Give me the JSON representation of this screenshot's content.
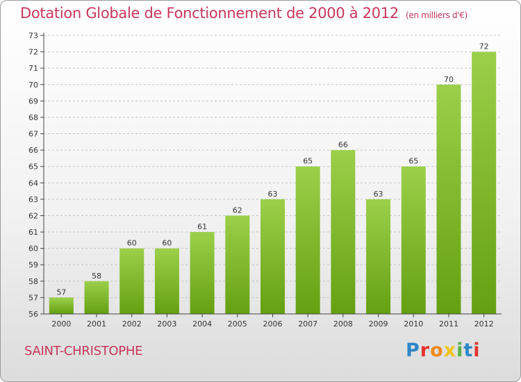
{
  "header": {
    "title": "Dotation Globale de Fonctionnement de 2000 à 2012",
    "unit": "(en milliers d'€)"
  },
  "footer": {
    "commune": "SAINT-CHRISTOPHE",
    "logo_text": "Proxiti",
    "logo_colors": [
      "#2e86c8",
      "#e4322f",
      "#f18a1b",
      "#f0c419",
      "#59b147",
      "#2e86c8",
      "#e4322f"
    ]
  },
  "chart_data": {
    "type": "bar",
    "title": "Dotation Globale de Fonctionnement de 2000 à 2012",
    "subtitle": "(en milliers d'€)",
    "xlabel": "",
    "ylabel": "",
    "categories": [
      "2000",
      "2001",
      "2002",
      "2003",
      "2004",
      "2005",
      "2006",
      "2007",
      "2008",
      "2009",
      "2010",
      "2011",
      "2012"
    ],
    "values": [
      57,
      58,
      60,
      60,
      61,
      62,
      63,
      65,
      66,
      63,
      65,
      70,
      72
    ],
    "ylim": [
      56,
      73
    ],
    "yticks": [
      56,
      57,
      58,
      59,
      60,
      61,
      62,
      63,
      64,
      65,
      66,
      67,
      68,
      69,
      70,
      71,
      72,
      73
    ],
    "grid": true,
    "legend": "none",
    "colors": {
      "bar_top": "#9ccf4a",
      "bar_bottom": "#64a012",
      "grid": "#c4c4c4",
      "axis": "#444444",
      "text": "#333333"
    }
  }
}
